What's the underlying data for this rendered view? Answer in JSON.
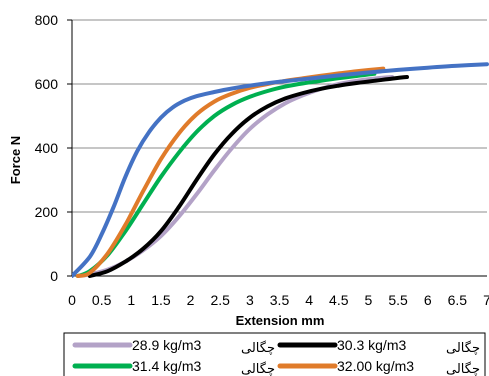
{
  "chart_data": {
    "type": "line",
    "title": "",
    "xlabel": "Extension mm",
    "ylabel": "Force N",
    "xlim": [
      0,
      7
    ],
    "ylim": [
      0,
      800
    ],
    "x_ticks": [
      "0",
      "0.5",
      "1",
      "1.5",
      "2",
      "2.5",
      "3",
      "3.5",
      "4",
      "4.5",
      "5",
      "5.5",
      "6",
      "6.5",
      "7"
    ],
    "y_ticks": [
      "0",
      "200",
      "400",
      "600",
      "800"
    ],
    "grid": "horizontal",
    "legend_position": "bottom",
    "series": [
      {
        "name": "28.9 kg/m3",
        "label_fa": "چگالی",
        "color": "#b3a2c7",
        "points": [
          [
            0.1,
            0
          ],
          [
            0.3,
            5
          ],
          [
            0.6,
            20
          ],
          [
            0.9,
            45
          ],
          [
            1.2,
            80
          ],
          [
            1.5,
            125
          ],
          [
            1.8,
            185
          ],
          [
            2.1,
            255
          ],
          [
            2.4,
            330
          ],
          [
            2.7,
            400
          ],
          [
            3.0,
            460
          ],
          [
            3.3,
            505
          ],
          [
            3.6,
            540
          ],
          [
            3.9,
            565
          ],
          [
            4.2,
            585
          ],
          [
            4.5,
            600
          ],
          [
            4.8,
            610
          ],
          [
            5.1,
            617
          ],
          [
            5.4,
            622
          ]
        ]
      },
      {
        "name": "30.3 kg/m3",
        "label_fa": "چگالی",
        "color": "#000000",
        "points": [
          [
            0.3,
            0
          ],
          [
            0.6,
            15
          ],
          [
            0.9,
            45
          ],
          [
            1.2,
            85
          ],
          [
            1.5,
            140
          ],
          [
            1.8,
            215
          ],
          [
            2.1,
            300
          ],
          [
            2.4,
            380
          ],
          [
            2.7,
            445
          ],
          [
            3.0,
            495
          ],
          [
            3.3,
            530
          ],
          [
            3.6,
            555
          ],
          [
            3.9,
            572
          ],
          [
            4.2,
            585
          ],
          [
            4.5,
            595
          ],
          [
            4.8,
            603
          ],
          [
            5.1,
            610
          ],
          [
            5.4,
            617
          ],
          [
            5.65,
            622
          ]
        ]
      },
      {
        "name": "31.4 kg/m3",
        "label_fa": "چگالی",
        "color": "#00b050",
        "points": [
          [
            0.1,
            0
          ],
          [
            0.3,
            15
          ],
          [
            0.6,
            65
          ],
          [
            0.9,
            140
          ],
          [
            1.2,
            225
          ],
          [
            1.5,
            310
          ],
          [
            1.8,
            385
          ],
          [
            2.1,
            450
          ],
          [
            2.4,
            500
          ],
          [
            2.7,
            535
          ],
          [
            3.0,
            560
          ],
          [
            3.3,
            578
          ],
          [
            3.6,
            592
          ],
          [
            3.9,
            602
          ],
          [
            4.2,
            610
          ],
          [
            4.5,
            618
          ],
          [
            4.8,
            625
          ],
          [
            5.1,
            632
          ]
        ]
      },
      {
        "name": "32.00 kg/m3",
        "label_fa": "چگالی",
        "color": "#e07b2a",
        "points": [
          [
            0.1,
            0
          ],
          [
            0.3,
            10
          ],
          [
            0.6,
            70
          ],
          [
            0.9,
            160
          ],
          [
            1.2,
            265
          ],
          [
            1.5,
            365
          ],
          [
            1.8,
            445
          ],
          [
            2.1,
            505
          ],
          [
            2.4,
            545
          ],
          [
            2.7,
            570
          ],
          [
            3.0,
            588
          ],
          [
            3.3,
            600
          ],
          [
            3.6,
            610
          ],
          [
            3.9,
            618
          ],
          [
            4.2,
            626
          ],
          [
            4.5,
            633
          ],
          [
            4.8,
            640
          ],
          [
            5.25,
            648
          ]
        ]
      },
      {
        "name": "",
        "color": "#4472c4",
        "points": [
          [
            0,
            0
          ],
          [
            0.3,
            60
          ],
          [
            0.5,
            130
          ],
          [
            0.7,
            215
          ],
          [
            0.9,
            310
          ],
          [
            1.1,
            390
          ],
          [
            1.3,
            450
          ],
          [
            1.5,
            495
          ],
          [
            1.7,
            527
          ],
          [
            1.9,
            548
          ],
          [
            2.1,
            562
          ],
          [
            2.4,
            575
          ],
          [
            2.7,
            586
          ],
          [
            3.0,
            595
          ],
          [
            3.5,
            607
          ],
          [
            4.0,
            617
          ],
          [
            4.5,
            627
          ],
          [
            5.0,
            636
          ],
          [
            5.5,
            644
          ],
          [
            6.0,
            651
          ],
          [
            6.5,
            657
          ],
          [
            7.0,
            662
          ]
        ]
      }
    ]
  }
}
